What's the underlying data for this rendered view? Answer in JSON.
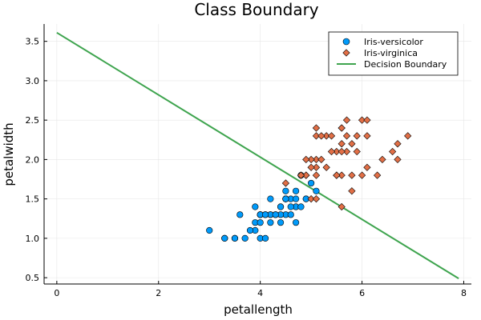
{
  "chart_data": {
    "type": "scatter",
    "title": "Class Boundary",
    "xlabel": "petallength",
    "ylabel": "petalwidth",
    "xlim": [
      -0.25,
      8.15
    ],
    "ylim": [
      0.42,
      3.72
    ],
    "xticks": [
      0,
      2,
      4,
      6,
      8
    ],
    "yticks": [
      0.5,
      1.0,
      1.5,
      2.0,
      2.5,
      3.0,
      3.5
    ],
    "xtick_labels": [
      "0",
      "2",
      "4",
      "6",
      "8"
    ],
    "ytick_labels": [
      "0.5",
      "1.0",
      "1.5",
      "2.0",
      "2.5",
      "3.0",
      "3.5"
    ],
    "grid": true,
    "legend_position": "top-right",
    "series": [
      {
        "name": "Iris-versicolor",
        "marker": "circle",
        "color": "#009AFA",
        "points": [
          [
            4.7,
            1.4
          ],
          [
            4.5,
            1.5
          ],
          [
            4.9,
            1.5
          ],
          [
            4.0,
            1.3
          ],
          [
            4.6,
            1.5
          ],
          [
            4.5,
            1.3
          ],
          [
            4.7,
            1.6
          ],
          [
            3.3,
            1.0
          ],
          [
            4.6,
            1.3
          ],
          [
            3.9,
            1.4
          ],
          [
            3.5,
            1.0
          ],
          [
            4.2,
            1.5
          ],
          [
            4.0,
            1.0
          ],
          [
            4.7,
            1.4
          ],
          [
            3.6,
            1.3
          ],
          [
            4.4,
            1.4
          ],
          [
            4.5,
            1.5
          ],
          [
            4.1,
            1.0
          ],
          [
            4.5,
            1.5
          ],
          [
            3.9,
            1.1
          ],
          [
            4.8,
            1.8
          ],
          [
            4.0,
            1.3
          ],
          [
            4.9,
            1.5
          ],
          [
            4.7,
            1.2
          ],
          [
            4.3,
            1.3
          ],
          [
            4.4,
            1.4
          ],
          [
            4.8,
            1.4
          ],
          [
            5.0,
            1.7
          ],
          [
            4.5,
            1.5
          ],
          [
            3.5,
            1.0
          ],
          [
            3.8,
            1.1
          ],
          [
            3.7,
            1.0
          ],
          [
            3.9,
            1.2
          ],
          [
            5.1,
            1.6
          ],
          [
            4.5,
            1.5
          ],
          [
            4.5,
            1.6
          ],
          [
            4.7,
            1.5
          ],
          [
            4.4,
            1.3
          ],
          [
            4.1,
            1.3
          ],
          [
            4.0,
            1.3
          ],
          [
            4.4,
            1.2
          ],
          [
            4.6,
            1.4
          ],
          [
            4.0,
            1.2
          ],
          [
            3.3,
            1.0
          ],
          [
            4.2,
            1.3
          ],
          [
            4.2,
            1.2
          ],
          [
            4.2,
            1.3
          ],
          [
            4.3,
            1.3
          ],
          [
            3.0,
            1.1
          ],
          [
            4.1,
            1.3
          ]
        ]
      },
      {
        "name": "Iris-virginica",
        "marker": "diamond",
        "color": "#E26F46",
        "points": [
          [
            6.0,
            2.5
          ],
          [
            5.1,
            1.9
          ],
          [
            5.9,
            2.1
          ],
          [
            5.6,
            1.8
          ],
          [
            5.8,
            2.2
          ],
          [
            6.6,
            2.1
          ],
          [
            4.5,
            1.7
          ],
          [
            6.3,
            1.8
          ],
          [
            5.8,
            1.8
          ],
          [
            6.1,
            2.5
          ],
          [
            5.1,
            2.0
          ],
          [
            5.3,
            1.9
          ],
          [
            5.5,
            2.1
          ],
          [
            5.0,
            2.0
          ],
          [
            5.1,
            2.4
          ],
          [
            5.3,
            2.3
          ],
          [
            5.5,
            1.8
          ],
          [
            6.7,
            2.2
          ],
          [
            6.9,
            2.3
          ],
          [
            5.0,
            1.5
          ],
          [
            5.7,
            2.3
          ],
          [
            4.9,
            2.0
          ],
          [
            6.7,
            2.0
          ],
          [
            4.9,
            1.8
          ],
          [
            5.7,
            2.1
          ],
          [
            6.0,
            1.8
          ],
          [
            4.8,
            1.8
          ],
          [
            4.9,
            1.8
          ],
          [
            5.6,
            2.1
          ],
          [
            5.8,
            1.6
          ],
          [
            6.1,
            1.9
          ],
          [
            6.4,
            2.0
          ],
          [
            5.6,
            2.2
          ],
          [
            5.1,
            1.5
          ],
          [
            5.6,
            1.4
          ],
          [
            6.1,
            2.3
          ],
          [
            5.6,
            2.4
          ],
          [
            5.5,
            1.8
          ],
          [
            4.8,
            1.8
          ],
          [
            5.4,
            2.1
          ],
          [
            5.6,
            2.4
          ],
          [
            5.1,
            2.3
          ],
          [
            5.9,
            2.3
          ],
          [
            5.7,
            2.5
          ],
          [
            5.2,
            2.3
          ],
          [
            5.0,
            1.9
          ],
          [
            5.2,
            2.0
          ],
          [
            5.4,
            2.3
          ],
          [
            5.1,
            1.8
          ]
        ]
      },
      {
        "name": "Decision Boundary",
        "type": "line",
        "color": "#3EA44E",
        "points": [
          [
            0.0,
            3.61
          ],
          [
            7.9,
            0.49
          ]
        ]
      }
    ]
  }
}
